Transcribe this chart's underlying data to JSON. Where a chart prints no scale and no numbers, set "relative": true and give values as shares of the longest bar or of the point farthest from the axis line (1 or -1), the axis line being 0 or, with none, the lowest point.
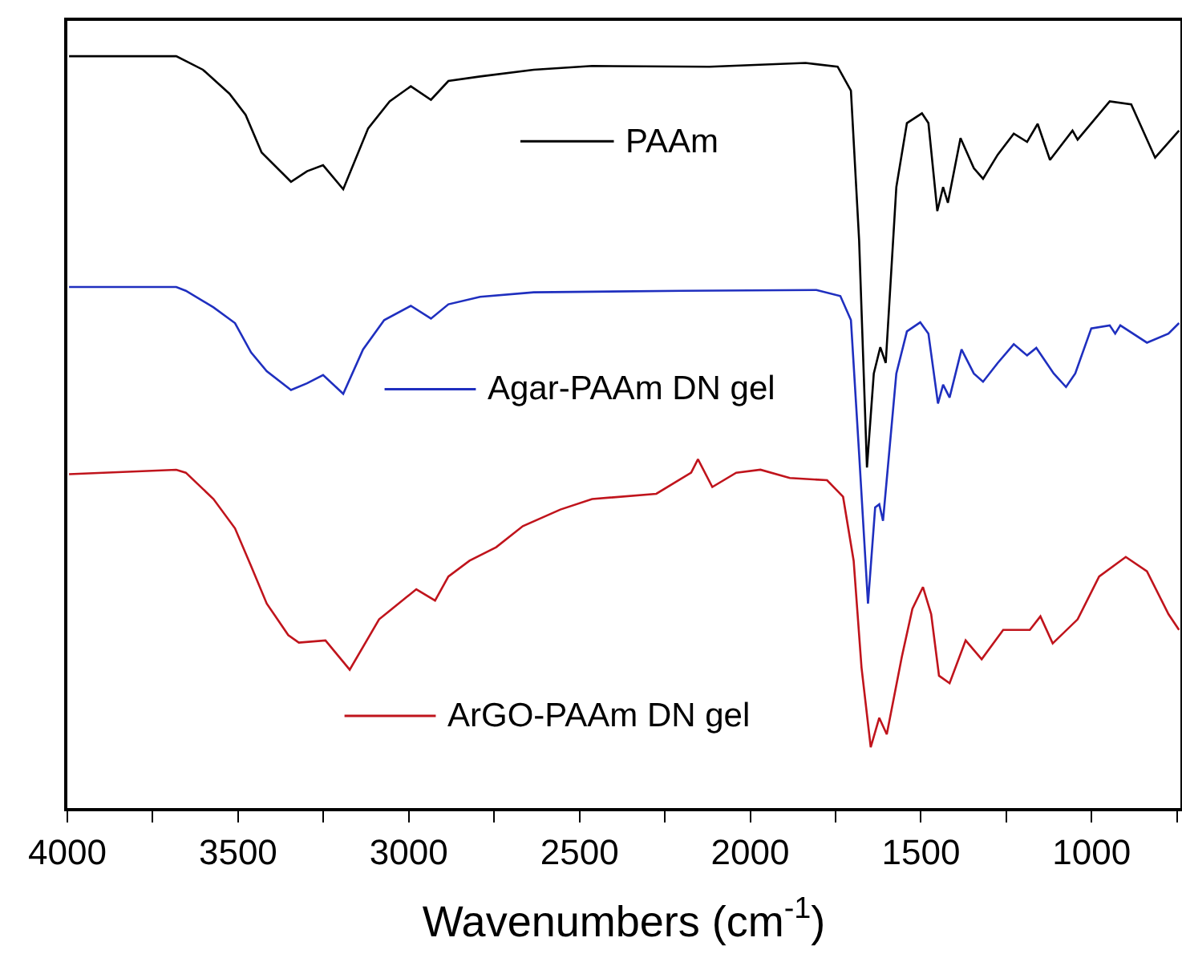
{
  "chart_data": {
    "type": "line",
    "relative": true,
    "xlabel": "Wavenumbers (cm$^{-1}$)",
    "xlim": [
      4000,
      740
    ],
    "xticks": [
      4000,
      {
        "value": 3750,
        "label": null
      },
      3500,
      {
        "value": 3250,
        "label": null
      },
      3000,
      {
        "value": 2750,
        "label": null
      },
      2500,
      {
        "value": 2250,
        "label": null
      },
      2000,
      {
        "value": 1750,
        "label": null
      },
      1500,
      {
        "value": 1250,
        "label": null
      },
      1000,
      {
        "value": 750,
        "label": null
      }
    ],
    "tick_labels": "x",
    "grid": false,
    "legend": "center",
    "marker": "none",
    "line_style": "solid",
    "series": [
      {
        "name": "PAAm",
        "color": "#000000",
        "x": [
          3995,
          3681,
          3603,
          3525,
          3478,
          3431,
          3345,
          3298,
          3251,
          3192,
          3119,
          3056,
          2994,
          2935,
          2884,
          2791,
          2634,
          2463,
          2119,
          1838,
          1744,
          1705,
          1681,
          1658,
          1638,
          1619,
          1603,
          1572,
          1541,
          1497,
          1478,
          1452,
          1435,
          1421,
          1384,
          1345,
          1318,
          1275,
          1228,
          1189,
          1158,
          1122,
          1056,
          1041,
          947,
          884,
          814,
          744
        ],
        "values": [
          1.0,
          1.0,
          0.982,
          0.95,
          0.922,
          0.872,
          0.833,
          0.847,
          0.855,
          0.823,
          0.904,
          0.94,
          0.96,
          0.942,
          0.967,
          0.973,
          0.982,
          0.987,
          0.986,
          0.991,
          0.986,
          0.954,
          0.755,
          0.453,
          0.578,
          0.613,
          0.592,
          0.826,
          0.911,
          0.924,
          0.911,
          0.794,
          0.826,
          0.805,
          0.891,
          0.851,
          0.837,
          0.869,
          0.897,
          0.886,
          0.91,
          0.862,
          0.901,
          0.889,
          0.94,
          0.936,
          0.865,
          0.901
        ]
      },
      {
        "name": "Agar-PAAm DN gel",
        "color": "#1f2fbf",
        "x": [
          3995,
          3681,
          3653,
          3572,
          3509,
          3462,
          3416,
          3345,
          3298,
          3251,
          3192,
          3134,
          3072,
          2994,
          2935,
          2884,
          2791,
          2634,
          2197,
          1806,
          1736,
          1705,
          1681,
          1655,
          1634,
          1622,
          1611,
          1572,
          1541,
          1502,
          1478,
          1450,
          1435,
          1416,
          1381,
          1345,
          1318,
          1275,
          1228,
          1189,
          1162,
          1111,
          1075,
          1048,
          1001,
          947,
          931,
          916,
          838,
          775,
          744
        ],
        "values": [
          0.693,
          0.693,
          0.688,
          0.666,
          0.645,
          0.606,
          0.581,
          0.556,
          0.565,
          0.576,
          0.551,
          0.61,
          0.649,
          0.668,
          0.651,
          0.67,
          0.68,
          0.686,
          0.688,
          0.689,
          0.681,
          0.649,
          0.471,
          0.272,
          0.4,
          0.404,
          0.382,
          0.578,
          0.634,
          0.646,
          0.631,
          0.538,
          0.563,
          0.546,
          0.61,
          0.578,
          0.567,
          0.592,
          0.617,
          0.602,
          0.612,
          0.578,
          0.56,
          0.578,
          0.638,
          0.642,
          0.631,
          0.642,
          0.619,
          0.631,
          0.645
        ]
      },
      {
        "name": "ArGO-PAAm DN gel",
        "color": "#c0141c",
        "x": [
          3995,
          3681,
          3653,
          3572,
          3509,
          3462,
          3416,
          3353,
          3322,
          3244,
          3173,
          3087,
          2978,
          2923,
          2884,
          2822,
          2744,
          2666,
          2556,
          2463,
          2275,
          2173,
          2153,
          2111,
          2041,
          1970,
          1884,
          1775,
          1728,
          1697,
          1674,
          1647,
          1622,
          1600,
          1556,
          1525,
          1494,
          1470,
          1447,
          1416,
          1369,
          1322,
          1259,
          1181,
          1150,
          1114,
          1041,
          978,
          900,
          838,
          775,
          744
        ],
        "values": [
          0.444,
          0.45,
          0.446,
          0.411,
          0.372,
          0.322,
          0.272,
          0.23,
          0.22,
          0.223,
          0.184,
          0.251,
          0.291,
          0.276,
          0.308,
          0.329,
          0.347,
          0.375,
          0.397,
          0.411,
          0.418,
          0.446,
          0.464,
          0.427,
          0.446,
          0.45,
          0.439,
          0.436,
          0.414,
          0.329,
          0.187,
          0.081,
          0.12,
          0.098,
          0.201,
          0.265,
          0.294,
          0.258,
          0.176,
          0.166,
          0.223,
          0.198,
          0.237,
          0.237,
          0.255,
          0.219,
          0.251,
          0.308,
          0.334,
          0.315,
          0.258,
          0.237
        ]
      }
    ]
  }
}
